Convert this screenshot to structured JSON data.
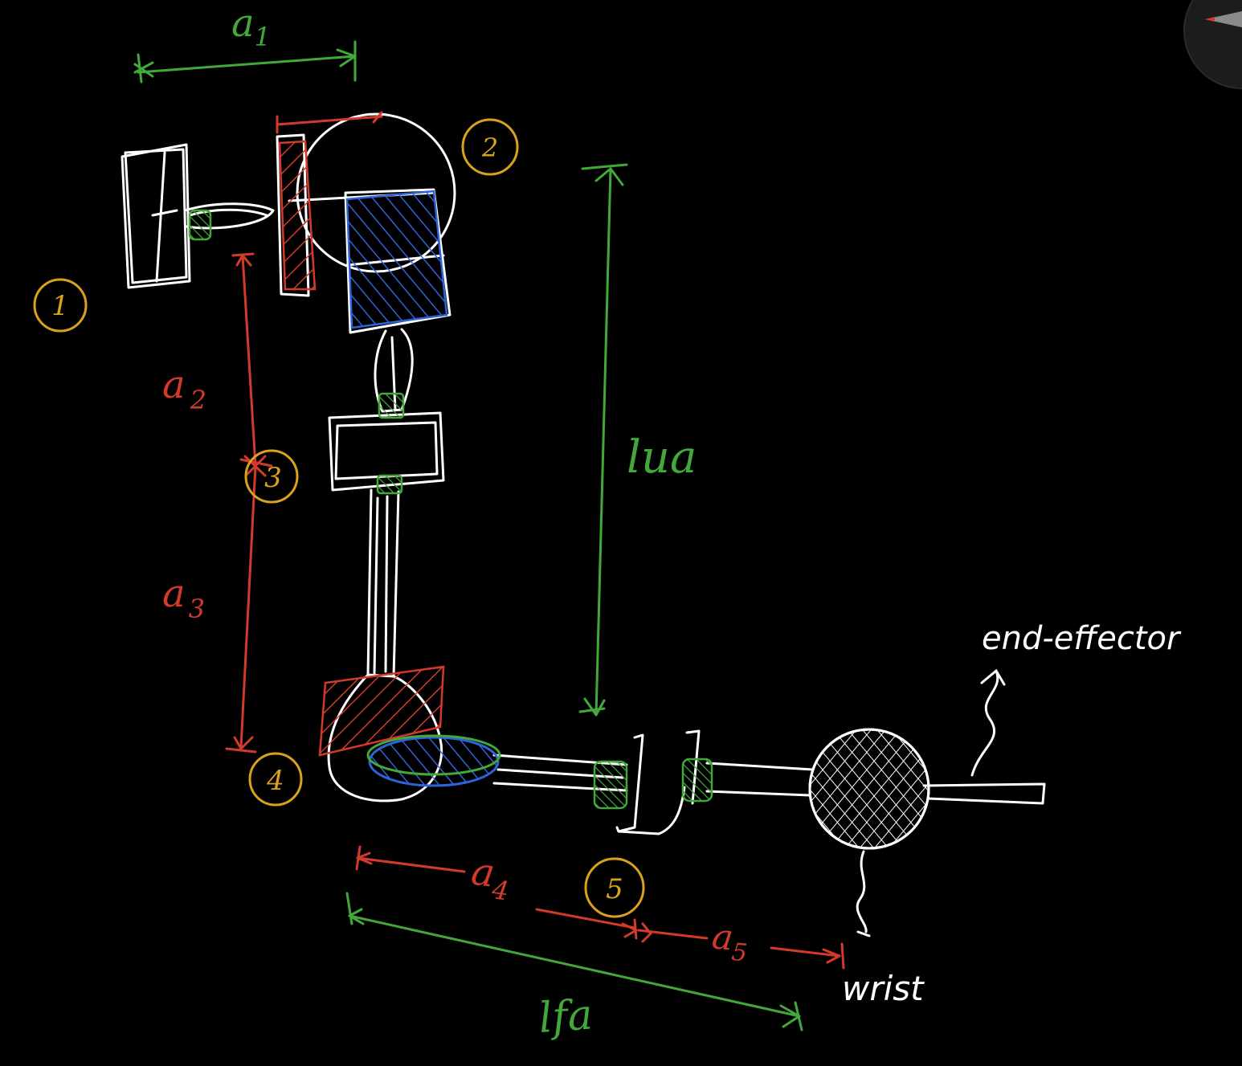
{
  "colors": {
    "background": "#000000",
    "structure": "#ffffff",
    "green": "#43a83a",
    "red": "#d23a2c",
    "blue": "#2f63d8",
    "orange": "#d9a21d"
  },
  "joints": {
    "j1": "1",
    "j2": "2",
    "j3": "3",
    "j4": "4",
    "j5": "5"
  },
  "dimensions": {
    "a1": {
      "base": "a",
      "sub": "1"
    },
    "a2": {
      "base": "a",
      "sub": "2"
    },
    "a3": {
      "base": "a",
      "sub": "3"
    },
    "a4": {
      "base": "a",
      "sub": "4"
    },
    "a5": {
      "base": "a",
      "sub": "5"
    },
    "lua": "lua",
    "lfa": "lfa"
  },
  "labels": {
    "end_effector": "end-effector",
    "wrist": "wrist"
  },
  "tool": {
    "icon": "pen-tool-icon"
  }
}
